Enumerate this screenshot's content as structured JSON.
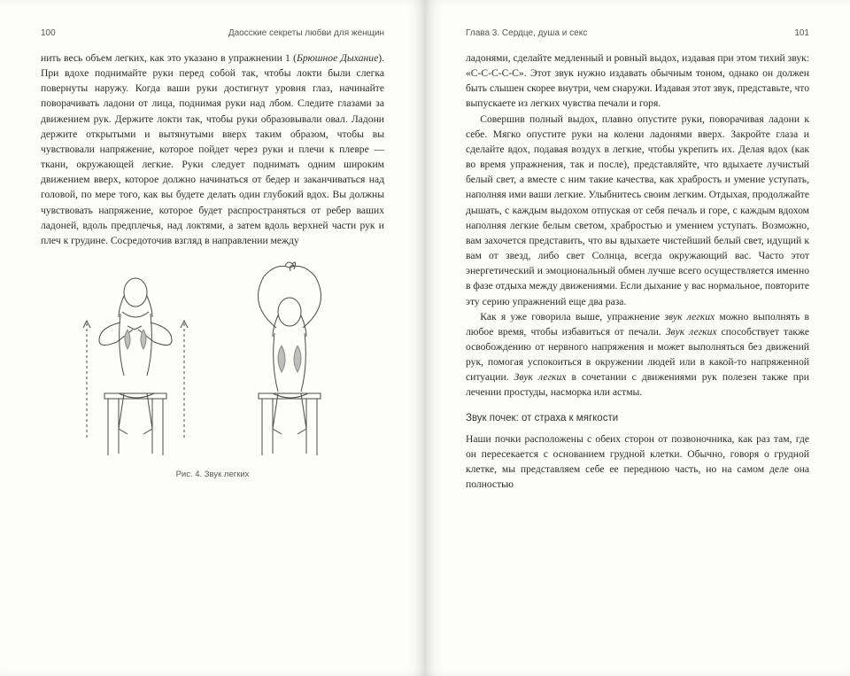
{
  "left": {
    "page_number": "100",
    "running_head": "Даосские секреты любви для женщин",
    "para1_html": "нить весь объем легких, как это указано в упражнении 1 (<em>Брюшное Дыхание</em>). При вдохе поднимайте руки перед собой так, чтобы локти были слегка повернуты наружу. Когда ваши руки достигнут уровня глаз, начинайте поворачивать ладони от лица, поднимая руки над лбом. Следите глазами за движением рук. Держите локти так, чтобы руки образовывали овал. Ладони держите открытыми и вытянутыми вверх таким образом, чтобы вы чувствовали напряжение, которое пойдет через руки и плечи к плевре — ткани, окружающей легкие. Руки следует поднимать одним широким движением вверх, которое должно начинаться от бедер и заканчиваться над головой, по мере того, как вы будете делать один глубокий вдох. Вы должны чувствовать напряжение, которое будет распространяться от ребер ваших ладоней, вдоль предплечья, над локтями, а затем вдоль верхней части рук и плеч к грудине. Сосредоточив взгляд в направлении между",
    "figure_caption": "Рис. 4. Звук легких"
  },
  "right": {
    "page_number": "101",
    "running_head": "Глава 3. Сердце, душа и секс",
    "para1": "ладонями, сделайте медленный и ровный выдох, издавая при этом тихий звук: «С-С-С-С-С». Этот звук нужно издавать обычным тоном, однако он должен быть слышен скорее внутри, чем снаружи. Издавая этот звук, представьте, что выпускаете из легких чувства печали и горя.",
    "para2": "Совершив полный выдох, плавно опустите руки, поворачивая ладони к себе. Мягко опустите руки на колени ладонями вверх. Закройте глаза и сделайте вдох, подавая воздух в легкие, чтобы укрепить их. Делая вдох (как во время упражнения, так и после), представляйте, что вдыхаете лучистый белый свет, а вместе с ним такие качества, как храбрость и умение уступать, наполняя ими ваши легкие. Улыбнитесь своим легким. Отдыхая, продолжайте дышать, с каждым выдохом отпуская от себя печаль и горе, с каждым вдохом наполняя легкие белым светом, храбростью и умением уступать. Возможно, вам захочется представить, что вы вдыхаете чистейший белый свет, идущий к вам от звезд, либо свет Солнца, всегда окружающий вас. Часто этот энергетический и эмоциональный обмен лучше всего осуществляется именно в фазе отдыха между движениями. Если дыхание у вас нормальное, повторите эту серию упражнений еще два раза.",
    "para3_html": "Как я уже говорила выше, упражнение <em>звук легких</em> можно выполнять в любое время, чтобы избавиться от печали. <em>Звук легких</em> способствует также освобождению от нервного напряжения и может выполняться без движений рук, помогая успокоиться в окружении людей или в какой-то напряженной ситуации. <em>Звук легких</em> в сочетании с движениями рук полезен также при лечении простуды, насморка или астмы.",
    "subhead": "Звук почек: от страха к мягкости",
    "para4": "Наши почки расположены с обеих сторон от позвоночника, как раз там, где он пересекается с основанием грудной клетки. Обычно, говоря о грудной клетке, мы представляем себе ее переднюю часть, но на самом деле она полностью"
  },
  "colors": {
    "page_bg": "#fdfdfb",
    "text": "#2a2a2a",
    "muted": "#555555",
    "stroke": "#4a4a4a"
  }
}
